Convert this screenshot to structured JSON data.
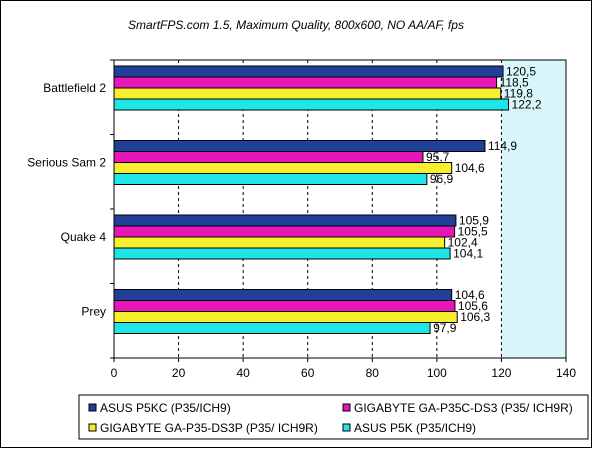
{
  "chart_data": {
    "type": "bar",
    "orientation": "horizontal",
    "title": "SmartFPS.com 1.5, Maximum Quality, 800x600, NO AA/AF, fps",
    "categories": [
      "Battlefield 2",
      "Serious Sam 2",
      "Quake 4",
      "Prey"
    ],
    "series": [
      {
        "name": "ASUS P5KC (P35/ICH9)",
        "color": "#1f3f99",
        "values": [
          120.5,
          114.9,
          105.9,
          104.6
        ],
        "labels": [
          "120,5",
          "114,9",
          "105,9",
          "104,6"
        ]
      },
      {
        "name": "GIGABYTE GA-P35C-DS3 (P35/ ICH9R)",
        "color": "#e815b8",
        "values": [
          118.5,
          95.7,
          105.5,
          105.6
        ],
        "labels": [
          "118,5",
          "95,7",
          "105,5",
          "105,6"
        ]
      },
      {
        "name": "GIGABYTE GA-P35-DS3P (P35/ ICH9R)",
        "color": "#f7ef2e",
        "values": [
          119.8,
          104.6,
          102.4,
          106.3
        ],
        "labels": [
          "119,8",
          "104,6",
          "102,4",
          "106,3"
        ]
      },
      {
        "name": "ASUS P5K (P35/ICH9)",
        "color": "#1fe6e6",
        "values": [
          122.2,
          96.9,
          104.1,
          97.9
        ],
        "labels": [
          "122,2",
          "96,9",
          "104,1",
          "97,9"
        ]
      }
    ],
    "xlim": [
      0,
      140
    ],
    "xticks": [
      "0",
      "20",
      "40",
      "60",
      "80",
      "100",
      "120",
      "140"
    ],
    "highlight_from": 120,
    "grid": true,
    "legend_position": "bottom"
  }
}
